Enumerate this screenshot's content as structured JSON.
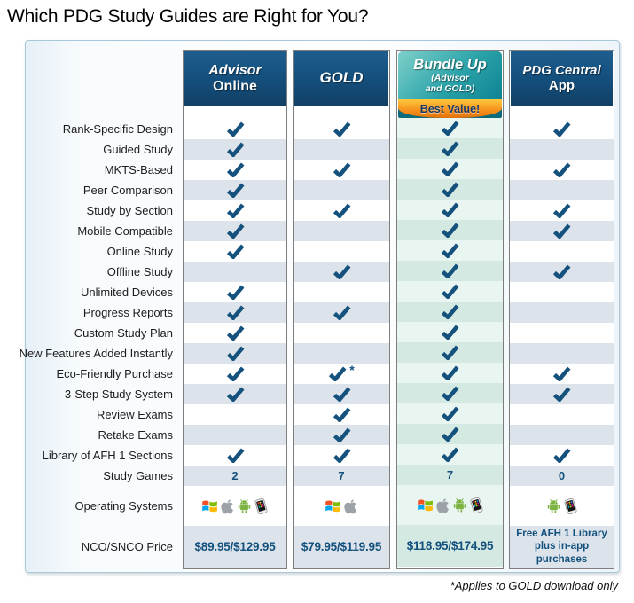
{
  "title": "Which PDG Study Guides are Right for You?",
  "footnote": "*Applies to GOLD download only",
  "columns": [
    {
      "line1": "Advisor",
      "line2": "Online"
    },
    {
      "line1": "GOLD"
    },
    {
      "line1": "Bundle Up",
      "line2": "(Advisor",
      "line3": "and GOLD)",
      "badge": "Best Value!"
    },
    {
      "line1": "PDG Central",
      "line2": "App"
    }
  ],
  "colors": {
    "header_navy": "#15517F",
    "check_navy": "#14517D",
    "bundle_teal_top": "#7ED0CA",
    "bundle_teal_bottom": "#0F8394",
    "badge_orange_top": "#FFC83D",
    "badge_orange_bottom": "#E1720A",
    "badge_text_navy": "#173A66",
    "row_stripe_gray": "#DCE3EB",
    "bundle_row_light": "#E9F5F1",
    "bundle_row_stripe": "#D3E9E2",
    "panel_border_blue": "#A9C7DB"
  },
  "chart_data": {
    "type": "table",
    "title": "Which PDG Study Guides are Right for You?",
    "columns": [
      "Advisor Online",
      "GOLD",
      "Bundle Up (Advisor and GOLD)",
      "PDG Central App"
    ],
    "badges": {
      "Bundle Up (Advisor and GOLD)": "Best Value!"
    },
    "footnote": "*Applies to GOLD download only",
    "rows": [
      {
        "label": "Rank-Specific Design",
        "values": [
          true,
          true,
          true,
          true
        ]
      },
      {
        "label": "Guided Study",
        "values": [
          true,
          false,
          true,
          false
        ]
      },
      {
        "label": "MKTS-Based",
        "values": [
          true,
          true,
          true,
          true
        ]
      },
      {
        "label": "Peer Comparison",
        "values": [
          true,
          false,
          true,
          false
        ]
      },
      {
        "label": "Study by Section",
        "values": [
          true,
          true,
          true,
          true
        ]
      },
      {
        "label": "Mobile Compatible",
        "values": [
          true,
          false,
          true,
          true
        ]
      },
      {
        "label": "Online Study",
        "values": [
          true,
          false,
          true,
          false
        ]
      },
      {
        "label": "Offline Study",
        "values": [
          false,
          true,
          true,
          true
        ]
      },
      {
        "label": "Unlimited Devices",
        "values": [
          true,
          false,
          true,
          false
        ]
      },
      {
        "label": "Progress Reports",
        "values": [
          true,
          true,
          true,
          false
        ]
      },
      {
        "label": "Custom Study Plan",
        "values": [
          true,
          false,
          true,
          false
        ]
      },
      {
        "label": "New Features Added Instantly",
        "values": [
          true,
          false,
          true,
          false
        ]
      },
      {
        "label": "Eco-Friendly Purchase",
        "values": [
          true,
          "check*",
          true,
          true
        ]
      },
      {
        "label": "3-Step Study System",
        "values": [
          true,
          true,
          true,
          true
        ]
      },
      {
        "label": "Review Exams",
        "values": [
          false,
          true,
          true,
          false
        ]
      },
      {
        "label": "Retake Exams",
        "values": [
          false,
          true,
          true,
          false
        ]
      },
      {
        "label": "Library of AFH 1 Sections",
        "values": [
          true,
          true,
          true,
          true
        ]
      },
      {
        "label": "Study Games",
        "kind": "number",
        "values": [
          "2",
          "7",
          "7",
          "0"
        ]
      },
      {
        "label": "Operating Systems",
        "kind": "os",
        "values": [
          [
            "windows",
            "apple",
            "android",
            "phone"
          ],
          [
            "windows",
            "apple"
          ],
          [
            "windows",
            "apple",
            "android",
            "phone"
          ],
          [
            "android",
            "phone"
          ]
        ]
      },
      {
        "label": "NCO/SNCO Price",
        "kind": "price",
        "values": [
          "$89.95/$129.95",
          "$79.95/$119.95",
          "$118.95/$174.95",
          "Free AFH 1 Library plus in-app purchases"
        ]
      }
    ]
  }
}
